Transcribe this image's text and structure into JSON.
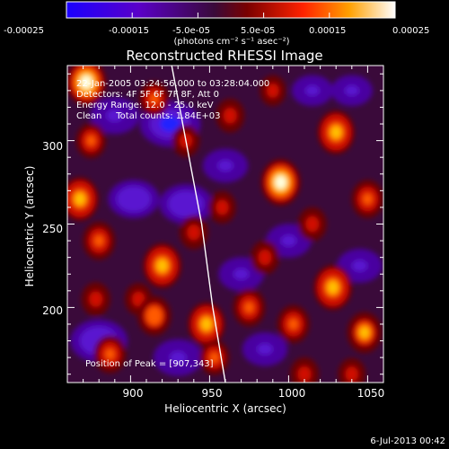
{
  "chart_data": {
    "type": "heatmap",
    "title": "Reconstructed RHESSI Image",
    "xlabel": "Heliocentric X (arcsec)",
    "ylabel": "Heliocentric Y (arcsec)",
    "xlim": [
      860,
      1060
    ],
    "ylim": [
      155,
      345
    ],
    "x_ticks": [
      900,
      950,
      1000,
      1050
    ],
    "y_ticks": [
      200,
      250,
      300
    ],
    "colorbar": {
      "range": [
        -0.00025,
        0.00025
      ],
      "tick_labels": [
        "-0.00025",
        "-0.00015",
        "-5.0e-05",
        "5.0e-05",
        "0.00015",
        "0.00025"
      ],
      "unit_label": "(photons cm⁻² s⁻¹ asec⁻²)",
      "colors": [
        "#1a00ff",
        "#5a00c8",
        "#3a0a3a",
        "#8a0000",
        "#ff2200",
        "#ffa000",
        "#ffffff"
      ]
    },
    "annotations": [
      "22-Jan-2005 03:24:56.000 to 03:28:04.000",
      "Detectors: 4F 5F 6F 7F 8F, Att 0",
      "Energy Range: 12.0 - 25.0 keV",
      "Clean     Total counts: 1.84E+03"
    ],
    "peak_label": "Position of Peak = [907,343]",
    "limb": [
      [
        926,
        345
      ],
      [
        935,
        300
      ],
      [
        945,
        250
      ],
      [
        952,
        200
      ],
      [
        960,
        155
      ]
    ],
    "sources": [
      {
        "x": 872,
        "y": 335,
        "v": 1.0
      },
      {
        "x": 868,
        "y": 265,
        "v": 0.9
      },
      {
        "x": 875,
        "y": 300,
        "v": 0.6
      },
      {
        "x": 880,
        "y": 240,
        "v": 0.7
      },
      {
        "x": 878,
        "y": 205,
        "v": 0.55
      },
      {
        "x": 887,
        "y": 172,
        "v": 0.7
      },
      {
        "x": 905,
        "y": 205,
        "v": 0.5
      },
      {
        "x": 915,
        "y": 195,
        "v": 0.75
      },
      {
        "x": 920,
        "y": 225,
        "v": 0.95
      },
      {
        "x": 915,
        "y": 325,
        "v": 0.6
      },
      {
        "x": 935,
        "y": 300,
        "v": 0.5
      },
      {
        "x": 940,
        "y": 245,
        "v": 0.55
      },
      {
        "x": 948,
        "y": 190,
        "v": 0.9
      },
      {
        "x": 953,
        "y": 170,
        "v": 0.6
      },
      {
        "x": 958,
        "y": 260,
        "v": 0.5
      },
      {
        "x": 963,
        "y": 315,
        "v": 0.55
      },
      {
        "x": 975,
        "y": 200,
        "v": 0.7
      },
      {
        "x": 985,
        "y": 230,
        "v": 0.55
      },
      {
        "x": 990,
        "y": 330,
        "v": 0.45
      },
      {
        "x": 995,
        "y": 275,
        "v": 1.0
      },
      {
        "x": 1003,
        "y": 190,
        "v": 0.7
      },
      {
        "x": 1010,
        "y": 160,
        "v": 0.55
      },
      {
        "x": 1015,
        "y": 250,
        "v": 0.55
      },
      {
        "x": 1030,
        "y": 305,
        "v": 0.9
      },
      {
        "x": 1028,
        "y": 212,
        "v": 0.95
      },
      {
        "x": 1050,
        "y": 265,
        "v": 0.7
      },
      {
        "x": 1048,
        "y": 185,
        "v": 0.8
      },
      {
        "x": 1040,
        "y": 160,
        "v": 0.5
      }
    ],
    "sinks": [
      {
        "x": 890,
        "y": 315,
        "v": -0.7
      },
      {
        "x": 902,
        "y": 265,
        "v": -0.75
      },
      {
        "x": 925,
        "y": 310,
        "v": -1.0
      },
      {
        "x": 935,
        "y": 262,
        "v": -0.8
      },
      {
        "x": 960,
        "y": 285,
        "v": -0.6
      },
      {
        "x": 930,
        "y": 170,
        "v": -0.7
      },
      {
        "x": 880,
        "y": 180,
        "v": -0.9
      },
      {
        "x": 970,
        "y": 220,
        "v": -0.6
      },
      {
        "x": 1000,
        "y": 240,
        "v": -0.6
      },
      {
        "x": 985,
        "y": 175,
        "v": -0.6
      },
      {
        "x": 1045,
        "y": 225,
        "v": -0.6
      },
      {
        "x": 1040,
        "y": 330,
        "v": -0.5
      },
      {
        "x": 1015,
        "y": 330,
        "v": -0.5
      }
    ]
  },
  "footer_date": "6-Jul-2013 00:42"
}
